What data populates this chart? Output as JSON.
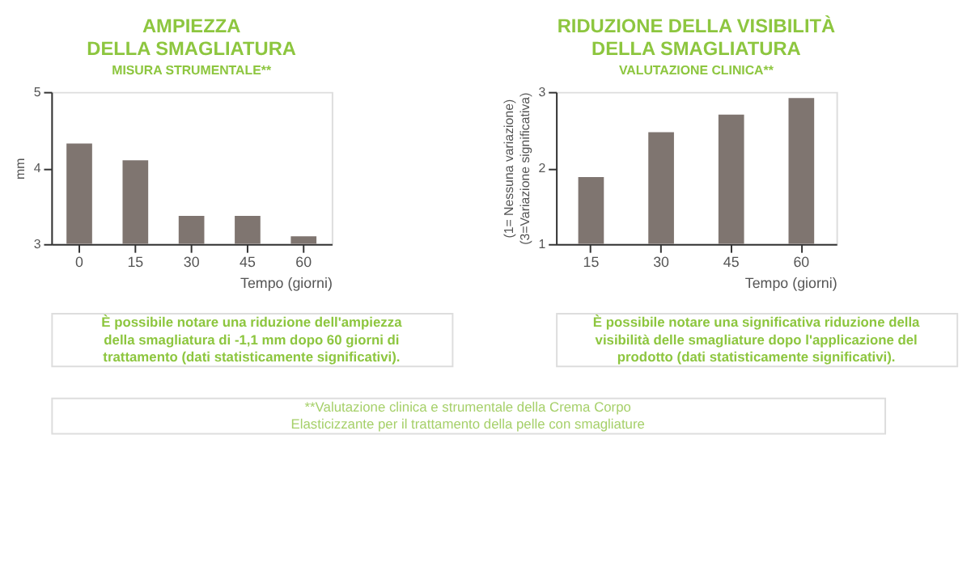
{
  "chart_data": [
    {
      "type": "bar",
      "title": "AMPIEZZA\nDELLA SMAGLIATURA",
      "subtitle": "MISURA STRUMENTALE**",
      "xlabel": "Tempo (giorni)",
      "ylabel": "mm",
      "categories": [
        "0",
        "15",
        "30",
        "45",
        "60"
      ],
      "values": [
        4.32,
        4.1,
        3.37,
        3.37,
        3.1
      ],
      "color": "#7f7570",
      "ylim": [
        3,
        5
      ],
      "yticks": [
        3,
        4,
        5
      ],
      "grid": false,
      "annotations": [
        "È possibile notare una riduzione dell'ampiezza\ndella smagliatura di -1,1 mm dopo 60 giorni di\ntrattamento (dati statisticamente significativi)."
      ]
    },
    {
      "type": "bar",
      "title": "RIDUZIONE DELLA VISIBILITÀ\nDELLA SMAGLIATURA",
      "subtitle": "VALUTAZIONE CLINICA**",
      "xlabel": "Tempo (giorni)",
      "ylabel": "(1= Nessuna variazione)\n(3=Variazione significativa)",
      "categories": [
        "15",
        "30",
        "45",
        "60"
      ],
      "values": [
        1.88,
        2.47,
        2.7,
        2.92
      ],
      "color": "#7f7570",
      "ylim": [
        1,
        3
      ],
      "yticks": [
        1,
        2,
        3
      ],
      "grid": false,
      "annotations": [
        "È possibile notare una significativa riduzione della\nvisibilità delle smagliature dopo l'applicazione del\nprodotto (dati statisticamente significativi).",
        "**Valutazione clinica e strumentale della Crema Corpo\nElasticizzante per il trattamento della pelle con smagliature"
      ]
    }
  ]
}
